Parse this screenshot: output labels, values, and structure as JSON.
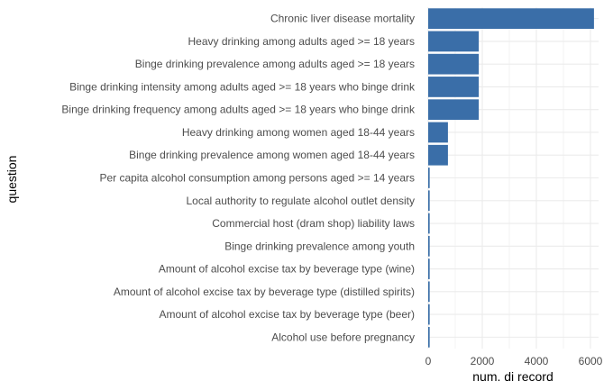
{
  "chart_data": {
    "type": "bar",
    "orientation": "horizontal",
    "categories": [
      "Chronic liver disease mortality",
      "Heavy drinking among adults aged >= 18 years",
      "Binge drinking prevalence among adults aged >= 18 years",
      "Binge drinking intensity among adults aged >= 18 years who binge drink",
      "Binge drinking frequency among adults aged >= 18 years who binge drink",
      "Heavy drinking among women aged 18-44 years",
      "Binge drinking prevalence among women aged 18-44 years",
      "Per capita alcohol consumption among persons aged >= 14 years",
      "Local authority to regulate alcohol outlet density",
      "Commercial host (dram shop) liability laws",
      "Binge drinking prevalence among youth",
      "Amount of alcohol excise tax by beverage type (wine)",
      "Amount of alcohol excise tax by beverage type (distilled spirits)",
      "Amount of alcohol excise tax by beverage type (beer)",
      "Alcohol use before pregnancy"
    ],
    "values": [
      6130,
      1870,
      1870,
      1870,
      1870,
      730,
      730,
      55,
      55,
      55,
      55,
      55,
      55,
      55,
      55
    ],
    "xlabel": "num. di record",
    "ylabel": "question",
    "xlim": [
      0,
      6300
    ],
    "xticks": [
      0,
      2000,
      4000,
      6000
    ],
    "x_minor_ticks": [
      1000,
      3000,
      5000
    ],
    "grid": true,
    "bar_color": "#3a6ea8",
    "grid_color": "#ebebeb"
  }
}
